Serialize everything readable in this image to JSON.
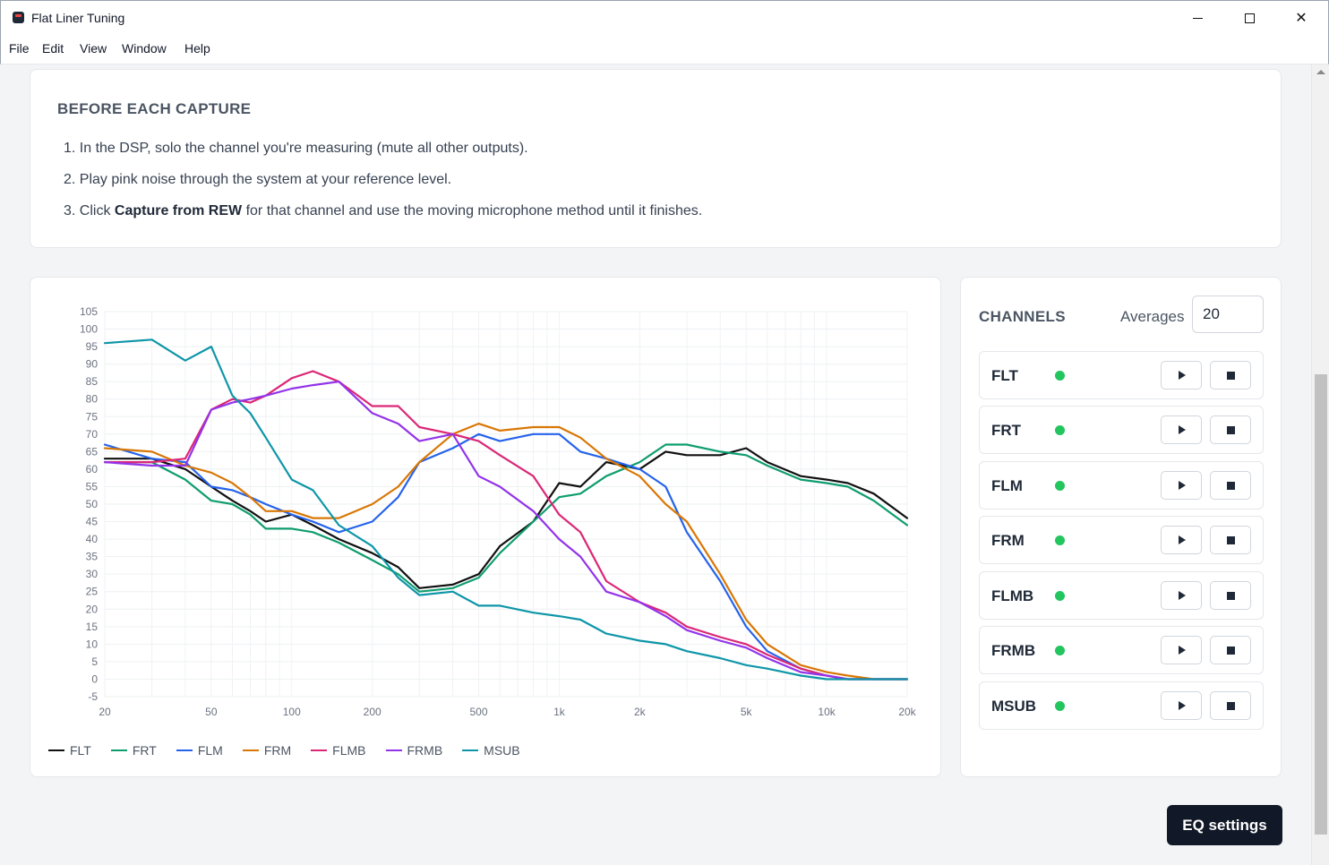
{
  "window": {
    "title": "Flat Liner Tuning",
    "icon": "app-logo-icon"
  },
  "menu": [
    "File",
    "Edit",
    "View",
    "Window",
    "Help"
  ],
  "instructions": {
    "heading": "BEFORE EACH CAPTURE",
    "steps": [
      {
        "num": "1.",
        "pre": "In the DSP, solo the channel you're measuring (mute all other outputs).",
        "bold": "",
        "post": ""
      },
      {
        "num": "2.",
        "pre": "Play pink noise through the system at your reference level.",
        "bold": "",
        "post": ""
      },
      {
        "num": "3.",
        "pre": "Click ",
        "bold": "Capture from REW",
        "post": " for that channel and use the moving microphone method until it finishes."
      }
    ]
  },
  "chart_data": {
    "type": "line",
    "title": "",
    "xlabel": "",
    "ylabel": "",
    "x_scale": "log",
    "xlim": [
      20,
      20000
    ],
    "ylim": [
      -5,
      105
    ],
    "grid": true,
    "legend_position": "bottom-left",
    "x_ticks": [
      "20",
      "50",
      "100",
      "200",
      "500",
      "1k",
      "2k",
      "5k",
      "10k",
      "20k"
    ],
    "x_tick_values": [
      20,
      50,
      100,
      200,
      500,
      1000,
      2000,
      5000,
      10000,
      20000
    ],
    "y_ticks": [
      105,
      100,
      95,
      90,
      85,
      80,
      75,
      70,
      65,
      60,
      55,
      50,
      45,
      40,
      35,
      30,
      25,
      20,
      15,
      10,
      5,
      0,
      -5
    ],
    "x": [
      20,
      30,
      40,
      50,
      60,
      70,
      80,
      100,
      120,
      150,
      200,
      250,
      300,
      400,
      500,
      600,
      800,
      1000,
      1200,
      1500,
      2000,
      2500,
      3000,
      4000,
      5000,
      6000,
      8000,
      10000,
      12000,
      15000,
      20000
    ],
    "series": [
      {
        "name": "FLT",
        "color": "#111111",
        "values": [
          63,
          63,
          60,
          55,
          51,
          48,
          45,
          47,
          44,
          40,
          36,
          32,
          26,
          27,
          30,
          38,
          45,
          56,
          55,
          62,
          60,
          65,
          64,
          64,
          66,
          62,
          58,
          57,
          56,
          53,
          46
        ]
      },
      {
        "name": "FRT",
        "color": "#0f9d6f",
        "values": [
          62,
          62,
          57,
          51,
          50,
          47,
          43,
          43,
          42,
          39,
          34,
          30,
          25,
          26,
          29,
          36,
          45,
          52,
          53,
          58,
          62,
          67,
          67,
          65,
          64,
          61,
          57,
          56,
          55,
          51,
          44
        ]
      },
      {
        "name": "FLM",
        "color": "#2563eb",
        "values": [
          67,
          63,
          62,
          55,
          54,
          52,
          50,
          47,
          45,
          42,
          45,
          52,
          62,
          66,
          70,
          68,
          70,
          70,
          65,
          63,
          60,
          55,
          42,
          28,
          15,
          8,
          3,
          1,
          0,
          0,
          0
        ]
      },
      {
        "name": "FRM",
        "color": "#d97706",
        "values": [
          66,
          65,
          61,
          59,
          56,
          52,
          48,
          48,
          46,
          46,
          50,
          55,
          62,
          70,
          73,
          71,
          72,
          72,
          69,
          63,
          58,
          50,
          45,
          30,
          17,
          10,
          4,
          2,
          1,
          0,
          0
        ]
      },
      {
        "name": "FLMB",
        "color": "#db2777",
        "values": [
          62,
          62,
          63,
          77,
          80,
          79,
          81,
          86,
          88,
          85,
          78,
          78,
          72,
          70,
          68,
          64,
          58,
          47,
          42,
          28,
          22,
          19,
          15,
          12,
          10,
          7,
          3,
          1,
          0,
          0,
          0
        ]
      },
      {
        "name": "FRMB",
        "color": "#9333ea",
        "values": [
          62,
          61,
          61,
          77,
          79,
          80,
          81,
          83,
          84,
          85,
          76,
          73,
          68,
          70,
          58,
          55,
          48,
          40,
          35,
          25,
          22,
          18,
          14,
          11,
          9,
          6,
          2,
          1,
          0,
          0,
          0
        ]
      },
      {
        "name": "MSUB",
        "color": "#0e96a8",
        "values": [
          96,
          97,
          91,
          95,
          81,
          76,
          69,
          57,
          54,
          44,
          38,
          29,
          24,
          25,
          21,
          21,
          19,
          18,
          17,
          13,
          11,
          10,
          8,
          6,
          4,
          3,
          1,
          0,
          0,
          0,
          0
        ]
      }
    ]
  },
  "channels": {
    "heading": "CHANNELS",
    "averages_label": "Averages",
    "averages_value": "20",
    "status_color": "#22c55e",
    "list": [
      {
        "name": "FLT"
      },
      {
        "name": "FRT"
      },
      {
        "name": "FLM"
      },
      {
        "name": "FRM"
      },
      {
        "name": "FLMB"
      },
      {
        "name": "FRMB"
      },
      {
        "name": "MSUB"
      }
    ]
  },
  "eq_button": "EQ settings"
}
